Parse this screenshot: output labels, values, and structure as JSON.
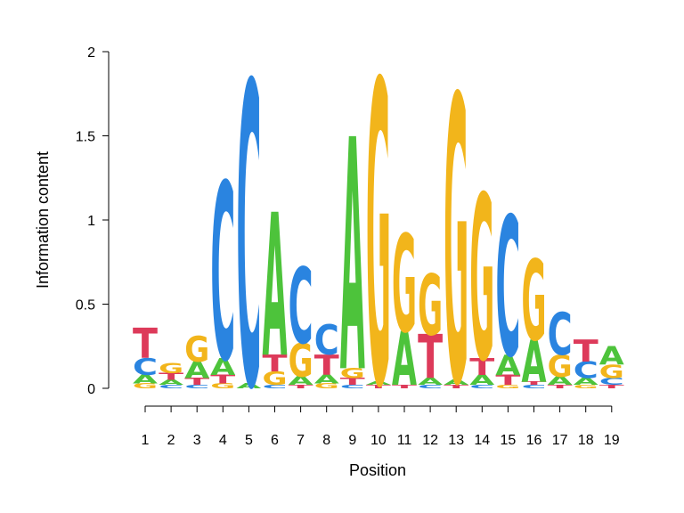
{
  "chart_data": {
    "type": "sequence-logo",
    "xlabel": "Position",
    "ylabel": "Information content",
    "ylim": [
      0,
      2
    ],
    "yticks": [
      {
        "value": 0,
        "label": "0"
      },
      {
        "value": 0.5,
        "label": "0.5"
      },
      {
        "value": 1,
        "label": "1"
      },
      {
        "value": 1.5,
        "label": "1.5"
      },
      {
        "value": 2,
        "label": "2"
      }
    ],
    "positions": [
      "1",
      "2",
      "3",
      "4",
      "5",
      "6",
      "7",
      "8",
      "9",
      "10",
      "11",
      "12",
      "13",
      "14",
      "15",
      "16",
      "17",
      "18",
      "19"
    ],
    "colors": {
      "A": "#4dc33b",
      "C": "#2a84e0",
      "G": "#f2b51b",
      "T": "#dd3a5a"
    },
    "columns": [
      [
        {
          "base": "G",
          "h": 0.03
        },
        {
          "base": "A",
          "h": 0.05
        },
        {
          "base": "C",
          "h": 0.1
        },
        {
          "base": "T",
          "h": 0.18
        }
      ],
      [
        {
          "base": "C",
          "h": 0.02
        },
        {
          "base": "A",
          "h": 0.03
        },
        {
          "base": "T",
          "h": 0.04
        },
        {
          "base": "G",
          "h": 0.06
        }
      ],
      [
        {
          "base": "C",
          "h": 0.02
        },
        {
          "base": "T",
          "h": 0.04
        },
        {
          "base": "A",
          "h": 0.1
        },
        {
          "base": "G",
          "h": 0.15
        }
      ],
      [
        {
          "base": "G",
          "h": 0.03
        },
        {
          "base": "T",
          "h": 0.05
        },
        {
          "base": "A",
          "h": 0.1
        },
        {
          "base": "C",
          "h": 1.05
        }
      ],
      [
        {
          "base": "A",
          "h": 0.03
        },
        {
          "base": "C",
          "h": 1.8
        }
      ],
      [
        {
          "base": "C",
          "h": 0.02
        },
        {
          "base": "G",
          "h": 0.08
        },
        {
          "base": "T",
          "h": 0.1
        },
        {
          "base": "A",
          "h": 0.85
        }
      ],
      [
        {
          "base": "T",
          "h": 0.02
        },
        {
          "base": "A",
          "h": 0.05
        },
        {
          "base": "G",
          "h": 0.2
        },
        {
          "base": "C",
          "h": 0.45
        }
      ],
      [
        {
          "base": "G",
          "h": 0.03
        },
        {
          "base": "A",
          "h": 0.05
        },
        {
          "base": "T",
          "h": 0.12
        },
        {
          "base": "C",
          "h": 0.18
        }
      ],
      [
        {
          "base": "C",
          "h": 0.02
        },
        {
          "base": "T",
          "h": 0.04
        },
        {
          "base": "G",
          "h": 0.06
        },
        {
          "base": "A",
          "h": 1.38
        }
      ],
      [
        {
          "base": "T",
          "h": 0.02
        },
        {
          "base": "A",
          "h": 0.02
        },
        {
          "base": "G",
          "h": 1.8
        }
      ],
      [
        {
          "base": "T",
          "h": 0.02
        },
        {
          "base": "A",
          "h": 0.32
        },
        {
          "base": "G",
          "h": 0.58
        }
      ],
      [
        {
          "base": "C",
          "h": 0.02
        },
        {
          "base": "A",
          "h": 0.04
        },
        {
          "base": "T",
          "h": 0.26
        },
        {
          "base": "G",
          "h": 0.36
        }
      ],
      [
        {
          "base": "T",
          "h": 0.02
        },
        {
          "base": "A",
          "h": 0.03
        },
        {
          "base": "G",
          "h": 1.7
        }
      ],
      [
        {
          "base": "C",
          "h": 0.02
        },
        {
          "base": "A",
          "h": 0.06
        },
        {
          "base": "T",
          "h": 0.1
        },
        {
          "base": "G",
          "h": 0.98
        }
      ],
      [
        {
          "base": "G",
          "h": 0.02
        },
        {
          "base": "T",
          "h": 0.06
        },
        {
          "base": "A",
          "h": 0.12
        },
        {
          "base": "C",
          "h": 0.83
        }
      ],
      [
        {
          "base": "C",
          "h": 0.02
        },
        {
          "base": "T",
          "h": 0.02
        },
        {
          "base": "A",
          "h": 0.25
        },
        {
          "base": "G",
          "h": 0.48
        }
      ],
      [
        {
          "base": "T",
          "h": 0.02
        },
        {
          "base": "A",
          "h": 0.05
        },
        {
          "base": "G",
          "h": 0.13
        },
        {
          "base": "C",
          "h": 0.25
        }
      ],
      [
        {
          "base": "G",
          "h": 0.02
        },
        {
          "base": "A",
          "h": 0.04
        },
        {
          "base": "C",
          "h": 0.1
        },
        {
          "base": "T",
          "h": 0.13
        }
      ],
      [
        {
          "base": "T",
          "h": 0.02
        },
        {
          "base": "C",
          "h": 0.04
        },
        {
          "base": "G",
          "h": 0.08
        },
        {
          "base": "A",
          "h": 0.11
        }
      ]
    ]
  }
}
